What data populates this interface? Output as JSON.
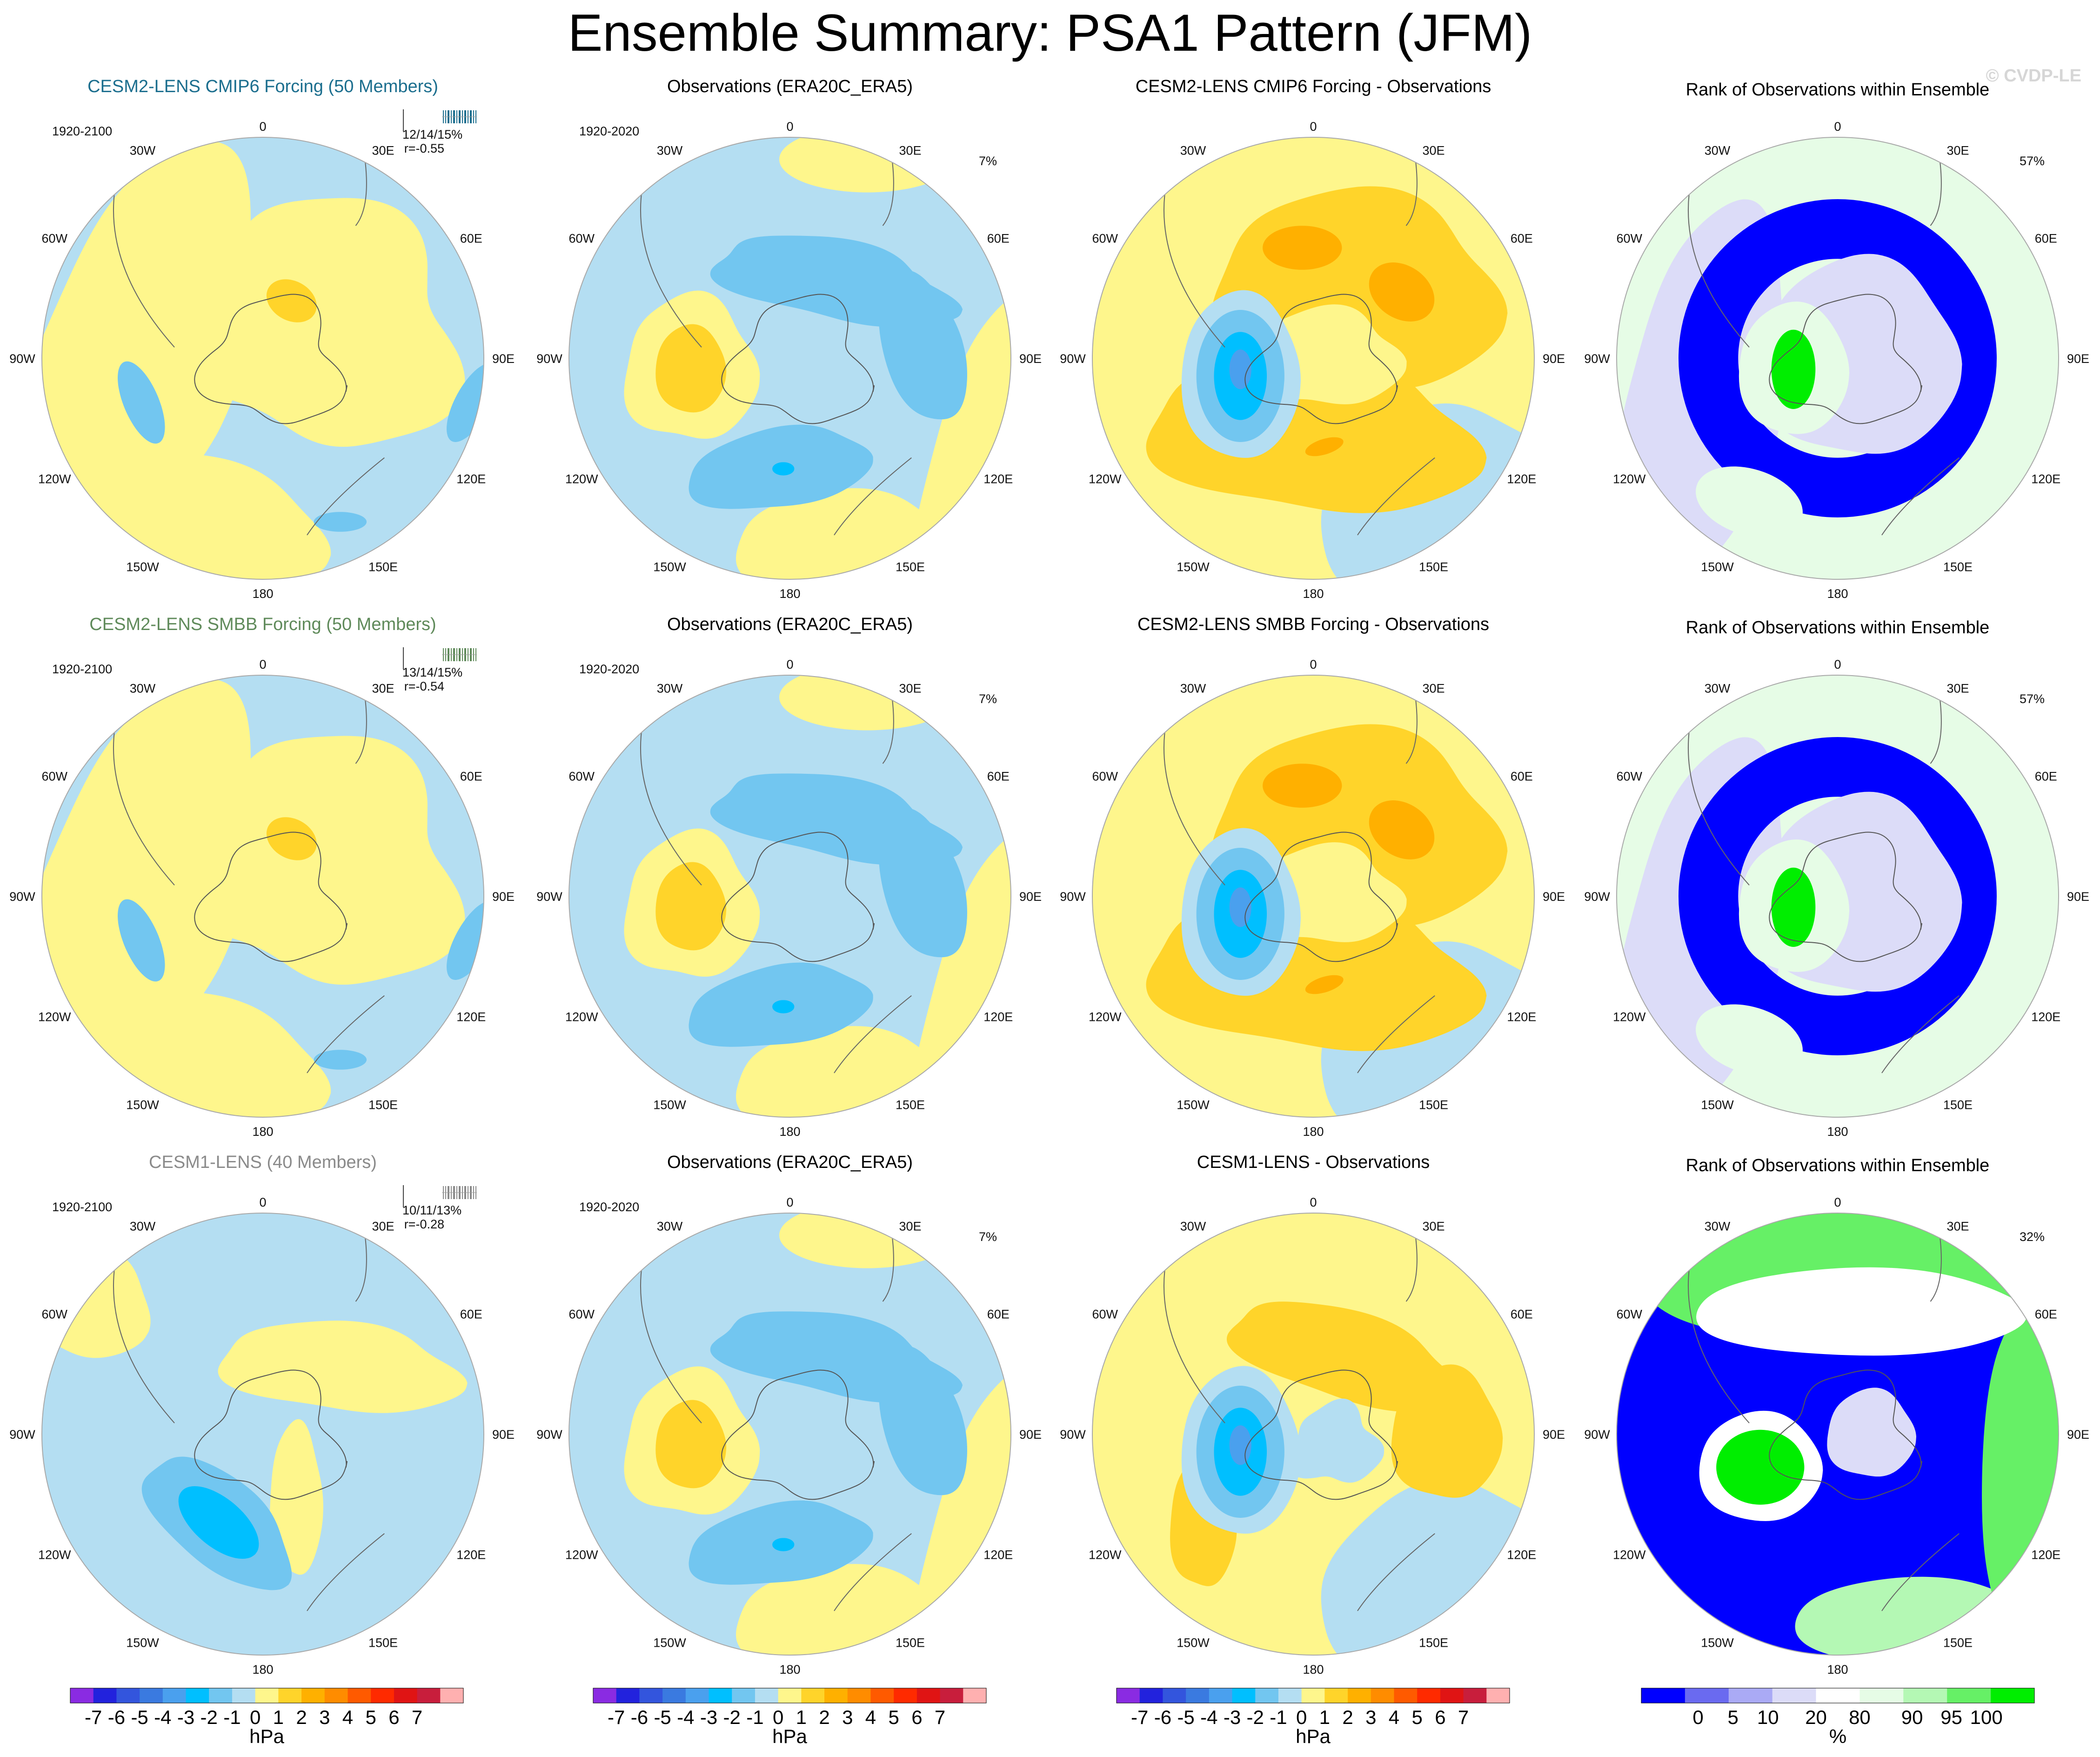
{
  "title": "Ensemble Summary: PSA1 Pattern (JFM)",
  "watermark": "© CVDP-LE",
  "map_labels": {
    "top": "0",
    "bottom": "180",
    "left": [
      "30W",
      "60W",
      "90W",
      "120W",
      "150W"
    ],
    "right": [
      "30E",
      "60E",
      "90E",
      "120E",
      "150E"
    ]
  },
  "rows": [
    {
      "model": {
        "title": "CESM2-LENS CMIP6 Forcing (50 Members)",
        "title_color": "#1b6e8e",
        "period": "1920-2100",
        "stats": "12/14/15%",
        "corr": "r=-0.55",
        "tick_color": "#1b6e8e"
      },
      "obs": {
        "title": "Observations (ERA20C_ERA5)",
        "period": "1920-2020",
        "pct": "7%"
      },
      "diff": {
        "title": "CESM2-LENS CMIP6 Forcing - Observations"
      },
      "rank": {
        "title": "Rank of Observations within Ensemble",
        "pct": "57%"
      }
    },
    {
      "model": {
        "title": "CESM2-LENS SMBB Forcing (50 Members)",
        "title_color": "#5f8a5a",
        "period": "1920-2100",
        "stats": "13/14/15%",
        "corr": "r=-0.54",
        "tick_color": "#5f8a5a"
      },
      "obs": {
        "title": "Observations (ERA20C_ERA5)",
        "period": "1920-2020",
        "pct": "7%"
      },
      "diff": {
        "title": "CESM2-LENS SMBB Forcing - Observations"
      },
      "rank": {
        "title": "Rank of Observations within Ensemble",
        "pct": "57%"
      }
    },
    {
      "model": {
        "title": "CESM1-LENS (40 Members)",
        "title_color": "#8a8a8a",
        "period": "1920-2100",
        "stats": "10/11/13%",
        "corr": "r=-0.28",
        "tick_color": "#8a8a8a"
      },
      "obs": {
        "title": "Observations (ERA20C_ERA5)",
        "period": "1920-2020",
        "pct": "7%"
      },
      "diff": {
        "title": "CESM1-LENS - Observations"
      },
      "rank": {
        "title": "Rank of Observations within Ensemble",
        "pct": "32%"
      }
    }
  ],
  "colorbar_hpa": {
    "colors": [
      "#8a2be2",
      "#2222dd",
      "#3355dd",
      "#3a7ae0",
      "#4aa0ee",
      "#00bfff",
      "#72c6f0",
      "#b4def2",
      "#fef68c",
      "#ffd42a",
      "#ffb000",
      "#ff8c00",
      "#ff5a00",
      "#ff2a00",
      "#e01414",
      "#c81e3c",
      "#ffb0b0"
    ],
    "ticks": [
      "-7",
      "-6",
      "-5",
      "-4",
      "-3",
      "-2",
      "-1",
      "0",
      "1",
      "2",
      "3",
      "4",
      "5",
      "6",
      "7"
    ],
    "unit": "hPa"
  },
  "colorbar_rank": {
    "colors": [
      "#0000ff",
      "#6a6af0",
      "#aaaaf5",
      "#dcdcf8",
      "#ffffff",
      "#e6fce6",
      "#b4f8b4",
      "#66f066",
      "#00ee00"
    ],
    "ticks": [
      "0",
      "5",
      "10",
      "20",
      "80",
      "90",
      "95",
      "100"
    ],
    "unit": "%"
  },
  "icons": {
    "land_outline": "continent-outline",
    "ensemble_ticks": "member-tick-marks"
  }
}
